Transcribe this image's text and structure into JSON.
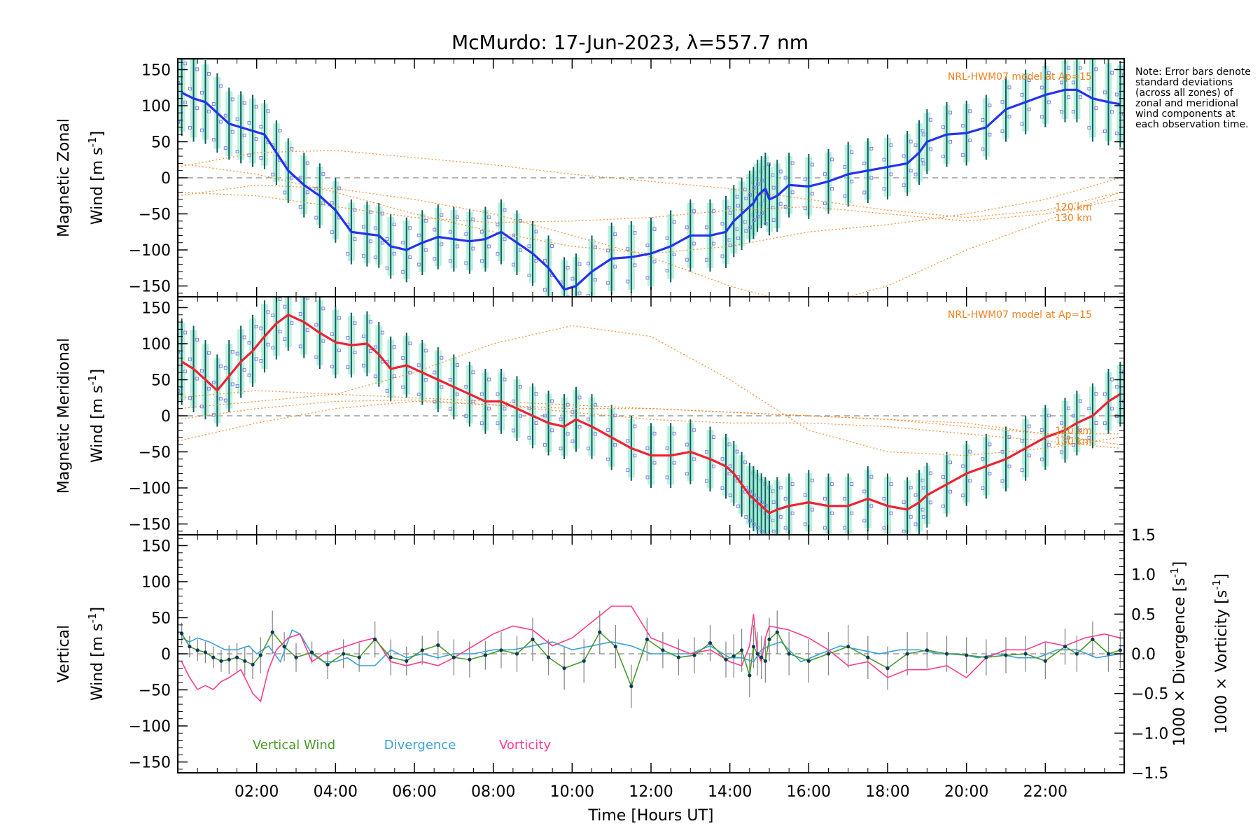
{
  "title": "McMurdo: 17-Jun-2023, λ=557.7 nm",
  "note": "Note: Error bars denote standard deviations (across all zones) of zonal and meridional wind components at each observation time.",
  "colors": {
    "zonal": "#2233ee",
    "meridional": "#ee2233",
    "model": "#f07f1e",
    "vertical": "#4a9a2a",
    "divergence": "#3aa0d8",
    "vorticity": "#ff3c8c",
    "errorbar": "#0b5e5e",
    "scatter_fill": "#8fe6c8",
    "scatter_pts": "#8080e0",
    "zero_line": "#888888"
  },
  "x_axis": {
    "label": "Time [Hours UT]",
    "range": [
      0.0,
      24.0
    ],
    "ticks": [
      2,
      4,
      6,
      8,
      10,
      12,
      14,
      16,
      18,
      20,
      22
    ],
    "tick_labels": [
      "02:00",
      "04:00",
      "06:00",
      "08:00",
      "10:00",
      "12:00",
      "14:00",
      "16:00",
      "18:00",
      "20:00",
      "22:00"
    ]
  },
  "chart_data": [
    {
      "type": "line",
      "name": "zonal",
      "ylabel_line1": "Magnetic Zonal",
      "ylabel_line2": "Wind [m s",
      "ylabel_sup": "-1",
      "ylabel_end": "]",
      "ylim": [
        -165,
        165
      ],
      "y_ticks": [
        -150,
        -100,
        -50,
        0,
        50,
        100,
        150
      ],
      "y_tick_labels": [
        "−150",
        "−100",
        "−50",
        "0",
        "50",
        "100",
        "150"
      ],
      "model_label": "NRL-HWM07 model at Ap=15",
      "model_alt_labels": [
        "120 km",
        "130 km"
      ],
      "x": [
        0.1,
        0.4,
        0.7,
        1.0,
        1.3,
        1.6,
        1.9,
        2.2,
        2.5,
        2.8,
        3.2,
        3.6,
        4.0,
        4.4,
        4.8,
        5.1,
        5.4,
        5.8,
        6.2,
        6.6,
        7.0,
        7.4,
        7.8,
        8.2,
        8.6,
        9.0,
        9.4,
        9.8,
        10.1,
        10.5,
        11.0,
        11.5,
        12.0,
        12.5,
        13.0,
        13.5,
        13.9,
        14.1,
        14.3,
        14.5,
        14.6,
        14.7,
        14.8,
        14.9,
        15.0,
        15.2,
        15.5,
        16.0,
        16.5,
        17.0,
        17.5,
        18.0,
        18.5,
        18.8,
        19.0,
        19.5,
        20.0,
        20.5,
        21.0,
        21.5,
        22.0,
        22.5,
        22.8,
        23.2,
        23.6,
        23.9
      ],
      "values": [
        118,
        110,
        105,
        90,
        75,
        70,
        65,
        60,
        35,
        10,
        -10,
        -25,
        -45,
        -75,
        -78,
        -80,
        -95,
        -100,
        -90,
        -82,
        -85,
        -88,
        -85,
        -75,
        -90,
        -105,
        -125,
        -155,
        -150,
        -130,
        -112,
        -110,
        -105,
        -95,
        -80,
        -80,
        -75,
        -60,
        -50,
        -40,
        -35,
        -25,
        -20,
        -15,
        -30,
        -25,
        -10,
        -12,
        -5,
        5,
        10,
        15,
        20,
        35,
        50,
        60,
        62,
        70,
        95,
        105,
        115,
        122,
        122,
        110,
        105,
        102
      ],
      "error_std": [
        60,
        60,
        58,
        55,
        50,
        50,
        50,
        48,
        45,
        45,
        45,
        45,
        45,
        45,
        45,
        45,
        45,
        45,
        45,
        45,
        45,
        45,
        45,
        45,
        45,
        45,
        45,
        45,
        45,
        50,
        50,
        50,
        50,
        50,
        50,
        50,
        50,
        50,
        50,
        50,
        50,
        50,
        50,
        50,
        50,
        50,
        45,
        45,
        45,
        45,
        45,
        45,
        45,
        45,
        45,
        45,
        45,
        45,
        45,
        45,
        45,
        45,
        45,
        60,
        60,
        60
      ],
      "model_curves": [
        {
          "x": [
            0.0,
            2.0,
            4.0,
            6.0,
            8.0,
            10.0,
            12.0,
            14.0,
            16.0,
            18.0,
            20.0,
            22.0,
            23.9
          ],
          "values": [
            15,
            35,
            38,
            28,
            18,
            5,
            -5,
            -15,
            -30,
            -45,
            -55,
            -45,
            -20
          ]
        },
        {
          "x": [
            0.0,
            2.0,
            4.0,
            6.0,
            8.0,
            10.0,
            12.0,
            14.0,
            16.0,
            18.0,
            20.0,
            22.0,
            23.9
          ],
          "values": [
            -25,
            -10,
            -15,
            -30,
            -50,
            -80,
            -110,
            -150,
            -180,
            -150,
            -100,
            -60,
            -20
          ]
        },
        {
          "x": [
            0.0,
            2.0,
            4.0,
            6.0,
            8.0,
            10.0,
            12.0,
            14.0,
            16.0,
            18.0,
            20.0,
            22.0,
            23.9
          ],
          "values": [
            -20,
            -25,
            -40,
            -55,
            -62,
            -60,
            -55,
            -45,
            -40,
            -50,
            -60,
            -50,
            -30
          ]
        },
        {
          "x": [
            0.0,
            2.0,
            4.0,
            6.0,
            8.0,
            10.0,
            12.0,
            14.0,
            16.0,
            18.0,
            20.0,
            22.0,
            23.9
          ],
          "values": [
            20,
            5,
            -20,
            -50,
            -75,
            -95,
            -105,
            -95,
            -75,
            -65,
            -50,
            -30,
            0
          ]
        }
      ]
    },
    {
      "type": "line",
      "name": "meridional",
      "ylabel_line1": "Magnetic Meridional",
      "ylabel_line2": "Wind [m s",
      "ylabel_sup": "-1",
      "ylabel_end": "]",
      "ylim": [
        -165,
        165
      ],
      "y_ticks": [
        -150,
        -100,
        -50,
        0,
        50,
        100,
        150
      ],
      "y_tick_labels": [
        "−150",
        "−100",
        "−50",
        "0",
        "50",
        "100",
        "150"
      ],
      "model_label": "NRL-HWM07 model at Ap=15",
      "model_alt_labels": [
        "120 km",
        "130 km"
      ],
      "x": [
        0.1,
        0.4,
        0.7,
        1.0,
        1.3,
        1.6,
        1.9,
        2.2,
        2.5,
        2.8,
        3.2,
        3.6,
        4.0,
        4.4,
        4.8,
        5.1,
        5.4,
        5.8,
        6.2,
        6.6,
        7.0,
        7.4,
        7.8,
        8.2,
        8.6,
        9.0,
        9.4,
        9.8,
        10.1,
        10.5,
        11.0,
        11.5,
        12.0,
        12.5,
        13.0,
        13.5,
        13.9,
        14.1,
        14.3,
        14.5,
        14.6,
        14.7,
        14.8,
        14.9,
        15.0,
        15.2,
        15.5,
        16.0,
        16.5,
        17.0,
        17.5,
        18.0,
        18.5,
        18.8,
        19.0,
        19.5,
        20.0,
        20.5,
        21.0,
        21.5,
        22.0,
        22.5,
        22.8,
        23.2,
        23.6,
        23.9
      ],
      "values": [
        75,
        65,
        50,
        35,
        55,
        75,
        90,
        110,
        128,
        140,
        130,
        115,
        102,
        98,
        100,
        85,
        65,
        70,
        60,
        50,
        40,
        30,
        20,
        20,
        10,
        0,
        -10,
        -15,
        -5,
        -15,
        -30,
        -45,
        -55,
        -55,
        -50,
        -60,
        -70,
        -80,
        -95,
        -110,
        -115,
        -120,
        -125,
        -130,
        -135,
        -130,
        -125,
        -120,
        -125,
        -125,
        -115,
        -125,
        -130,
        -120,
        -110,
        -95,
        -80,
        -70,
        -60,
        -45,
        -30,
        -20,
        -10,
        0,
        20,
        30
      ],
      "error_std": [
        60,
        60,
        55,
        50,
        50,
        50,
        50,
        50,
        50,
        50,
        50,
        50,
        50,
        45,
        45,
        45,
        45,
        45,
        45,
        45,
        45,
        45,
        45,
        45,
        45,
        45,
        45,
        45,
        45,
        45,
        45,
        45,
        45,
        45,
        45,
        45,
        45,
        45,
        45,
        45,
        45,
        45,
        45,
        45,
        45,
        45,
        45,
        45,
        45,
        45,
        45,
        45,
        45,
        45,
        45,
        45,
        45,
        45,
        45,
        45,
        45,
        45,
        45,
        45,
        45,
        45
      ],
      "model_curves": [
        {
          "x": [
            0.0,
            2.0,
            4.0,
            6.0,
            8.0,
            10.0,
            12.0,
            14.0,
            16.0,
            18.0,
            20.0,
            22.0,
            23.9
          ],
          "values": [
            10,
            20,
            30,
            60,
            100,
            125,
            110,
            50,
            -20,
            -50,
            -55,
            -45,
            -30
          ]
        },
        {
          "x": [
            0.0,
            2.0,
            4.0,
            6.0,
            8.0,
            10.0,
            12.0,
            14.0,
            16.0,
            18.0,
            20.0,
            22.0,
            23.9
          ],
          "values": [
            -5,
            10,
            20,
            22,
            15,
            10,
            10,
            5,
            0,
            -5,
            -15,
            -25,
            -25
          ]
        },
        {
          "x": [
            0.0,
            2.0,
            4.0,
            6.0,
            8.0,
            10.0,
            12.0,
            14.0,
            16.0,
            18.0,
            20.0,
            22.0,
            23.9
          ],
          "values": [
            -35,
            -10,
            10,
            20,
            15,
            5,
            -5,
            -10,
            -10,
            -15,
            -25,
            -35,
            -45
          ]
        },
        {
          "x": [
            0.0,
            2.0,
            4.0,
            6.0,
            8.0,
            10.0,
            12.0,
            14.0,
            16.0,
            18.0,
            20.0,
            22.0,
            23.9
          ],
          "values": [
            25,
            35,
            30,
            25,
            20,
            15,
            10,
            5,
            0,
            -5,
            -10,
            -25,
            -40
          ]
        }
      ]
    },
    {
      "type": "line",
      "name": "vertical",
      "ylabel_line1": "Vertical",
      "ylabel_line2": "Wind [m s",
      "ylabel_sup": "-1",
      "ylabel_end": "]",
      "ylim": [
        -165,
        165
      ],
      "y_ticks": [
        -150,
        -100,
        -50,
        0,
        50,
        100,
        150
      ],
      "y_tick_labels": [
        "−150",
        "−100",
        "−50",
        "0",
        "50",
        "100",
        "150"
      ],
      "right_ylim": [
        -1.5,
        1.5
      ],
      "right_ticks": [
        -1.5,
        -1.0,
        -0.5,
        0.0,
        0.5,
        1.0,
        1.5
      ],
      "right_tick_labels": [
        "−1.5",
        "−1.0",
        "−0.5",
        "0.0",
        "0.5",
        "1.0",
        "1.5"
      ],
      "right_label_div": "1000 × Divergence [s",
      "right_label_vort": "1000 × Vorticity [s",
      "right_label_sup": "-1",
      "right_label_end": "]",
      "legend": [
        "Vertical Wind",
        "Divergence",
        "Vorticity"
      ],
      "vertical_x": [
        0.1,
        0.3,
        0.5,
        0.7,
        0.9,
        1.1,
        1.3,
        1.5,
        1.7,
        1.9,
        2.1,
        2.4,
        2.7,
        3.0,
        3.4,
        3.8,
        4.2,
        4.6,
        5.0,
        5.4,
        5.8,
        6.2,
        6.6,
        7.0,
        7.4,
        7.8,
        8.2,
        8.6,
        9.0,
        9.4,
        9.8,
        10.3,
        10.7,
        11.1,
        11.5,
        11.9,
        12.3,
        12.7,
        13.1,
        13.5,
        13.9,
        14.1,
        14.3,
        14.5,
        14.6,
        14.7,
        14.8,
        14.9,
        15.0,
        15.2,
        15.5,
        16.0,
        16.5,
        17.0,
        17.5,
        18.0,
        18.5,
        19.0,
        19.5,
        20.0,
        20.5,
        21.0,
        21.5,
        22.0,
        22.5,
        22.8,
        23.2,
        23.6,
        23.9
      ],
      "vertical_values": [
        28,
        10,
        5,
        2,
        -5,
        -10,
        -8,
        -5,
        -10,
        -15,
        -2,
        30,
        10,
        -5,
        2,
        -15,
        0,
        -5,
        20,
        -5,
        -10,
        5,
        12,
        -5,
        -8,
        -2,
        5,
        0,
        20,
        -5,
        -20,
        -10,
        30,
        10,
        -45,
        20,
        5,
        -5,
        -2,
        15,
        -8,
        -3,
        5,
        -30,
        10,
        0,
        -5,
        -10,
        20,
        30,
        0,
        -10,
        0,
        10,
        -5,
        -20,
        0,
        5,
        0,
        -2,
        -5,
        -2,
        0,
        -10,
        10,
        0,
        20,
        0,
        5
      ],
      "vertical_std": [
        15,
        15,
        15,
        15,
        15,
        15,
        20,
        20,
        20,
        20,
        25,
        30,
        20,
        20,
        15,
        20,
        20,
        20,
        25,
        25,
        20,
        20,
        20,
        25,
        25,
        20,
        25,
        25,
        30,
        25,
        30,
        30,
        30,
        30,
        30,
        30,
        25,
        25,
        25,
        25,
        25,
        30,
        30,
        30,
        30,
        30,
        30,
        30,
        30,
        30,
        30,
        30,
        30,
        30,
        30,
        30,
        30,
        25,
        25,
        25,
        25,
        25,
        25,
        25,
        25,
        25,
        25,
        25,
        25
      ],
      "divergence_x": [
        0.1,
        0.3,
        0.5,
        0.8,
        1.0,
        1.2,
        1.5,
        1.8,
        2.0,
        2.3,
        2.6,
        2.9,
        3.1,
        3.4,
        3.7,
        4.0,
        4.3,
        4.6,
        5.0,
        5.4,
        5.8,
        6.2,
        6.6,
        7.0,
        7.5,
        8.0,
        8.5,
        9.0,
        9.5,
        10.0,
        10.5,
        11.0,
        11.5,
        12.0,
        12.5,
        13.0,
        13.5,
        14.0,
        14.3,
        14.6,
        14.8,
        15.0,
        15.3,
        15.8,
        16.3,
        16.8,
        17.3,
        17.8,
        18.3,
        18.8,
        19.3,
        19.8,
        20.3,
        20.8,
        21.3,
        21.8,
        22.3,
        22.8,
        23.3,
        23.9
      ],
      "divergence_values": [
        0.2,
        0.15,
        0.2,
        0.15,
        0.1,
        0.05,
        0.05,
        0.1,
        0.0,
        0.1,
        -0.1,
        0.3,
        0.25,
        0.0,
        -0.1,
        -0.1,
        -0.05,
        -0.15,
        -0.15,
        0.05,
        -0.05,
        0.0,
        -0.05,
        0.0,
        0.0,
        0.05,
        0.05,
        0.1,
        0.15,
        0.05,
        0.1,
        0.15,
        0.1,
        0.0,
        0.0,
        0.0,
        0.1,
        -0.05,
        -0.05,
        -0.1,
        0.05,
        0.1,
        0.15,
        -0.1,
        0.0,
        0.1,
        0.05,
        0.0,
        0.05,
        0.05,
        0.0,
        0.0,
        -0.05,
        0.0,
        -0.05,
        -0.05,
        0.05,
        0.05,
        -0.05,
        0.0
      ],
      "vorticity_x": [
        0.1,
        0.3,
        0.5,
        0.7,
        0.9,
        1.1,
        1.3,
        1.6,
        1.9,
        2.1,
        2.3,
        2.5,
        2.8,
        3.1,
        3.4,
        3.7,
        4.0,
        4.3,
        4.6,
        5.0,
        5.4,
        5.8,
        6.2,
        6.6,
        7.0,
        7.5,
        8.0,
        8.5,
        9.0,
        9.5,
        10.0,
        10.5,
        11.0,
        11.5,
        12.0,
        12.5,
        13.0,
        13.5,
        14.0,
        14.3,
        14.5,
        14.6,
        14.7,
        14.8,
        14.9,
        15.0,
        15.5,
        16.0,
        16.5,
        17.0,
        17.5,
        18.0,
        18.5,
        19.0,
        19.5,
        20.0,
        20.5,
        21.0,
        21.5,
        22.0,
        22.5,
        23.0,
        23.5,
        23.9
      ],
      "vorticity_values": [
        -0.1,
        -0.3,
        -0.45,
        -0.4,
        -0.45,
        -0.35,
        -0.3,
        -0.2,
        -0.5,
        -0.6,
        -0.2,
        0.05,
        0.2,
        0.25,
        -0.1,
        0.0,
        0.05,
        0.1,
        0.15,
        0.2,
        -0.1,
        -0.15,
        -0.1,
        -0.15,
        -0.05,
        0.1,
        0.25,
        0.35,
        0.3,
        0.1,
        0.2,
        0.4,
        0.6,
        0.6,
        0.2,
        0.1,
        0.0,
        0.05,
        -0.1,
        -0.15,
        0.1,
        0.5,
        0.0,
        -0.1,
        0.2,
        0.35,
        0.3,
        0.2,
        0.05,
        -0.15,
        -0.1,
        -0.3,
        -0.2,
        -0.2,
        -0.15,
        -0.3,
        -0.05,
        0.05,
        0.05,
        0.15,
        0.1,
        0.2,
        0.25,
        0.2
      ]
    }
  ]
}
